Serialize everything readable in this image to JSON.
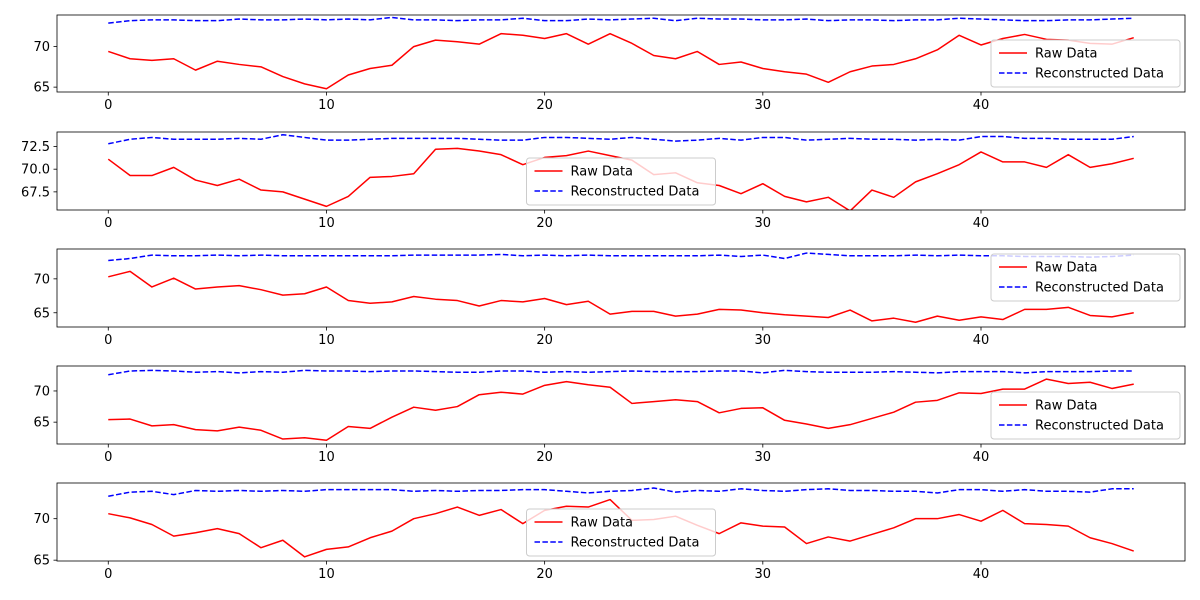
{
  "chart_data": [
    {
      "type": "line",
      "x": [
        0,
        1,
        2,
        3,
        4,
        5,
        6,
        7,
        8,
        9,
        10,
        11,
        12,
        13,
        14,
        15,
        16,
        17,
        18,
        19,
        20,
        21,
        22,
        23,
        24,
        25,
        26,
        27,
        28,
        29,
        30,
        31,
        32,
        33,
        34,
        35,
        36,
        37,
        38,
        39,
        40,
        41,
        42,
        43,
        44,
        45,
        46,
        47
      ],
      "xticks": [
        0,
        10,
        20,
        30,
        40
      ],
      "xlim": [
        -2.35,
        49.35
      ],
      "ylim": [
        64.4,
        73.9
      ],
      "yticks": [
        "65",
        "70"
      ],
      "legend_position": "lower-right",
      "series": [
        {
          "name": "Raw Data",
          "color": "#ff0000",
          "style": "solid",
          "values": [
            69.4,
            68.5,
            68.3,
            68.5,
            67.1,
            68.2,
            67.8,
            67.5,
            66.3,
            65.4,
            64.8,
            66.5,
            67.3,
            67.7,
            70.0,
            70.8,
            70.6,
            70.3,
            71.6,
            71.4,
            71.0,
            71.6,
            70.3,
            71.6,
            70.4,
            68.9,
            68.5,
            69.4,
            67.8,
            68.1,
            67.3,
            66.9,
            66.6,
            65.6,
            66.9,
            67.6,
            67.8,
            68.5,
            69.6,
            71.4,
            70.2,
            71.0,
            71.5,
            70.9,
            70.8,
            70.4,
            70.3,
            71.1
          ]
        },
        {
          "name": "Reconstructed Data",
          "color": "#0000ff",
          "style": "dashed",
          "values": [
            72.9,
            73.2,
            73.3,
            73.3,
            73.2,
            73.2,
            73.4,
            73.3,
            73.3,
            73.4,
            73.3,
            73.4,
            73.3,
            73.6,
            73.3,
            73.3,
            73.2,
            73.3,
            73.3,
            73.5,
            73.2,
            73.2,
            73.4,
            73.3,
            73.4,
            73.5,
            73.2,
            73.5,
            73.4,
            73.4,
            73.3,
            73.3,
            73.4,
            73.2,
            73.3,
            73.3,
            73.2,
            73.3,
            73.3,
            73.5,
            73.4,
            73.3,
            73.2,
            73.2,
            73.3,
            73.3,
            73.4,
            73.5
          ]
        }
      ]
    },
    {
      "type": "line",
      "x": [
        0,
        1,
        2,
        3,
        4,
        5,
        6,
        7,
        8,
        9,
        10,
        11,
        12,
        13,
        14,
        15,
        16,
        17,
        18,
        19,
        20,
        21,
        22,
        23,
        24,
        25,
        26,
        27,
        28,
        29,
        30,
        31,
        32,
        33,
        34,
        35,
        36,
        37,
        38,
        39,
        40,
        41,
        42,
        43,
        44,
        45,
        46,
        47
      ],
      "xticks": [
        0,
        10,
        20,
        30,
        40
      ],
      "xlim": [
        -2.35,
        49.35
      ],
      "ylim": [
        65.5,
        74.1
      ],
      "yticks": [
        "67.5",
        "70.0",
        "72.5"
      ],
      "legend_position": "lower-center",
      "series": [
        {
          "name": "Raw Data",
          "color": "#ff0000",
          "style": "solid",
          "values": [
            71.1,
            69.3,
            69.3,
            70.2,
            68.8,
            68.2,
            68.9,
            67.7,
            67.5,
            66.7,
            65.9,
            67.0,
            69.1,
            69.2,
            69.5,
            72.2,
            72.3,
            72.0,
            71.6,
            70.5,
            71.3,
            71.5,
            72.0,
            71.5,
            71.0,
            69.4,
            69.6,
            68.5,
            68.2,
            67.3,
            68.4,
            67.0,
            66.4,
            66.9,
            65.4,
            67.7,
            66.9,
            68.6,
            69.5,
            70.5,
            71.9,
            70.8,
            70.8,
            70.2,
            71.6,
            70.2,
            70.6,
            71.2
          ]
        },
        {
          "name": "Reconstructed Data",
          "color": "#0000ff",
          "style": "dashed",
          "values": [
            72.8,
            73.3,
            73.5,
            73.3,
            73.3,
            73.3,
            73.4,
            73.3,
            73.8,
            73.5,
            73.2,
            73.2,
            73.3,
            73.4,
            73.4,
            73.4,
            73.4,
            73.3,
            73.2,
            73.2,
            73.5,
            73.5,
            73.4,
            73.3,
            73.5,
            73.3,
            73.1,
            73.2,
            73.4,
            73.2,
            73.5,
            73.5,
            73.2,
            73.3,
            73.4,
            73.3,
            73.3,
            73.2,
            73.3,
            73.2,
            73.6,
            73.6,
            73.4,
            73.4,
            73.3,
            73.3,
            73.3,
            73.6
          ]
        }
      ]
    },
    {
      "type": "line",
      "x": [
        0,
        1,
        2,
        3,
        4,
        5,
        6,
        7,
        8,
        9,
        10,
        11,
        12,
        13,
        14,
        15,
        16,
        17,
        18,
        19,
        20,
        21,
        22,
        23,
        24,
        25,
        26,
        27,
        28,
        29,
        30,
        31,
        32,
        33,
        34,
        35,
        36,
        37,
        38,
        39,
        40,
        41,
        42,
        43,
        44,
        45,
        46,
        47
      ],
      "xticks": [
        0,
        10,
        20,
        30,
        40
      ],
      "xlim": [
        -2.35,
        49.35
      ],
      "ylim": [
        62.9,
        74.4
      ],
      "yticks": [
        "65",
        "70"
      ],
      "legend_position": "upper-right",
      "series": [
        {
          "name": "Raw Data",
          "color": "#ff0000",
          "style": "solid",
          "values": [
            70.3,
            71.1,
            68.8,
            70.1,
            68.5,
            68.8,
            69.0,
            68.4,
            67.6,
            67.8,
            68.8,
            66.8,
            66.4,
            66.6,
            67.4,
            67.0,
            66.8,
            66.0,
            66.8,
            66.6,
            67.1,
            66.2,
            66.7,
            64.8,
            65.2,
            65.2,
            64.5,
            64.8,
            65.5,
            65.4,
            65.0,
            64.7,
            64.5,
            64.3,
            65.4,
            63.8,
            64.2,
            63.6,
            64.5,
            63.9,
            64.4,
            64.0,
            65.5,
            65.5,
            65.8,
            64.6,
            64.4,
            65.0
          ]
        },
        {
          "name": "Reconstructed Data",
          "color": "#0000ff",
          "style": "dashed",
          "values": [
            72.7,
            73.0,
            73.5,
            73.4,
            73.4,
            73.5,
            73.4,
            73.5,
            73.4,
            73.4,
            73.4,
            73.4,
            73.4,
            73.4,
            73.5,
            73.5,
            73.5,
            73.5,
            73.6,
            73.4,
            73.5,
            73.4,
            73.5,
            73.4,
            73.4,
            73.4,
            73.4,
            73.4,
            73.5,
            73.3,
            73.5,
            73.0,
            73.8,
            73.6,
            73.4,
            73.4,
            73.4,
            73.5,
            73.4,
            73.5,
            73.4,
            73.4,
            73.3,
            73.3,
            73.3,
            73.2,
            73.3,
            73.5
          ]
        }
      ]
    },
    {
      "type": "line",
      "x": [
        0,
        1,
        2,
        3,
        4,
        5,
        6,
        7,
        8,
        9,
        10,
        11,
        12,
        13,
        14,
        15,
        16,
        17,
        18,
        19,
        20,
        21,
        22,
        23,
        24,
        25,
        26,
        27,
        28,
        29,
        30,
        31,
        32,
        33,
        34,
        35,
        36,
        37,
        38,
        39,
        40,
        41,
        42,
        43,
        44,
        45,
        46,
        47
      ],
      "xticks": [
        0,
        10,
        20,
        30,
        40
      ],
      "xlim": [
        -2.35,
        49.35
      ],
      "ylim": [
        61.5,
        74.0
      ],
      "yticks": [
        "65",
        "70"
      ],
      "legend_position": "lower-right",
      "series": [
        {
          "name": "Raw Data",
          "color": "#ff0000",
          "style": "solid",
          "values": [
            65.4,
            65.5,
            64.4,
            64.6,
            63.8,
            63.6,
            64.2,
            63.7,
            62.3,
            62.5,
            62.1,
            64.3,
            64.0,
            65.8,
            67.4,
            66.9,
            67.5,
            69.4,
            69.8,
            69.5,
            70.9,
            71.5,
            71.0,
            70.6,
            68.0,
            68.3,
            68.6,
            68.3,
            66.5,
            67.2,
            67.3,
            65.3,
            64.7,
            64.0,
            64.6,
            65.6,
            66.6,
            68.2,
            68.5,
            69.7,
            69.6,
            70.3,
            70.3,
            71.9,
            71.2,
            71.4,
            70.4,
            71.1
          ]
        },
        {
          "name": "Reconstructed Data",
          "color": "#0000ff",
          "style": "dashed",
          "values": [
            72.6,
            73.2,
            73.3,
            73.2,
            73.0,
            73.1,
            72.9,
            73.1,
            73.0,
            73.3,
            73.2,
            73.2,
            73.1,
            73.2,
            73.2,
            73.1,
            73.0,
            73.0,
            73.2,
            73.2,
            73.0,
            73.1,
            73.0,
            73.1,
            73.2,
            73.1,
            73.1,
            73.1,
            73.2,
            73.2,
            72.9,
            73.3,
            73.1,
            73.0,
            73.0,
            73.0,
            73.1,
            73.0,
            72.9,
            73.1,
            73.1,
            73.1,
            72.9,
            73.1,
            73.1,
            73.1,
            73.2,
            73.2
          ]
        }
      ]
    },
    {
      "type": "line",
      "x": [
        0,
        1,
        2,
        3,
        4,
        5,
        6,
        7,
        8,
        9,
        10,
        11,
        12,
        13,
        14,
        15,
        16,
        17,
        18,
        19,
        20,
        21,
        22,
        23,
        24,
        25,
        26,
        27,
        28,
        29,
        30,
        31,
        32,
        33,
        34,
        35,
        36,
        37,
        38,
        39,
        40,
        41,
        42,
        43,
        44,
        45,
        46,
        47
      ],
      "xticks": [
        0,
        10,
        20,
        30,
        40
      ],
      "xlim": [
        -2.35,
        49.35
      ],
      "ylim": [
        64.9,
        74.3
      ],
      "yticks": [
        "65",
        "70"
      ],
      "legend_position": "lower-center",
      "series": [
        {
          "name": "Raw Data",
          "color": "#ff0000",
          "style": "solid",
          "values": [
            70.6,
            70.1,
            69.3,
            67.9,
            68.3,
            68.8,
            68.2,
            66.5,
            67.4,
            65.4,
            66.3,
            66.6,
            67.7,
            68.5,
            70.0,
            70.6,
            71.4,
            70.4,
            71.1,
            69.4,
            71.0,
            71.5,
            71.4,
            72.3,
            69.8,
            69.9,
            70.3,
            69.2,
            68.2,
            69.5,
            69.1,
            69.0,
            67.0,
            67.8,
            67.3,
            68.1,
            68.9,
            70.0,
            70.0,
            70.5,
            69.7,
            71.0,
            69.4,
            69.3,
            69.1,
            67.7,
            67.0,
            66.1
          ]
        },
        {
          "name": "Reconstructed Data",
          "color": "#0000ff",
          "style": "dashed",
          "values": [
            72.7,
            73.2,
            73.3,
            72.9,
            73.4,
            73.3,
            73.4,
            73.3,
            73.4,
            73.3,
            73.5,
            73.5,
            73.5,
            73.5,
            73.3,
            73.4,
            73.3,
            73.4,
            73.4,
            73.5,
            73.5,
            73.3,
            73.1,
            73.3,
            73.4,
            73.7,
            73.2,
            73.4,
            73.3,
            73.6,
            73.4,
            73.3,
            73.5,
            73.6,
            73.4,
            73.4,
            73.3,
            73.3,
            73.1,
            73.5,
            73.5,
            73.3,
            73.5,
            73.3,
            73.3,
            73.2,
            73.6,
            73.6
          ]
        }
      ]
    }
  ]
}
